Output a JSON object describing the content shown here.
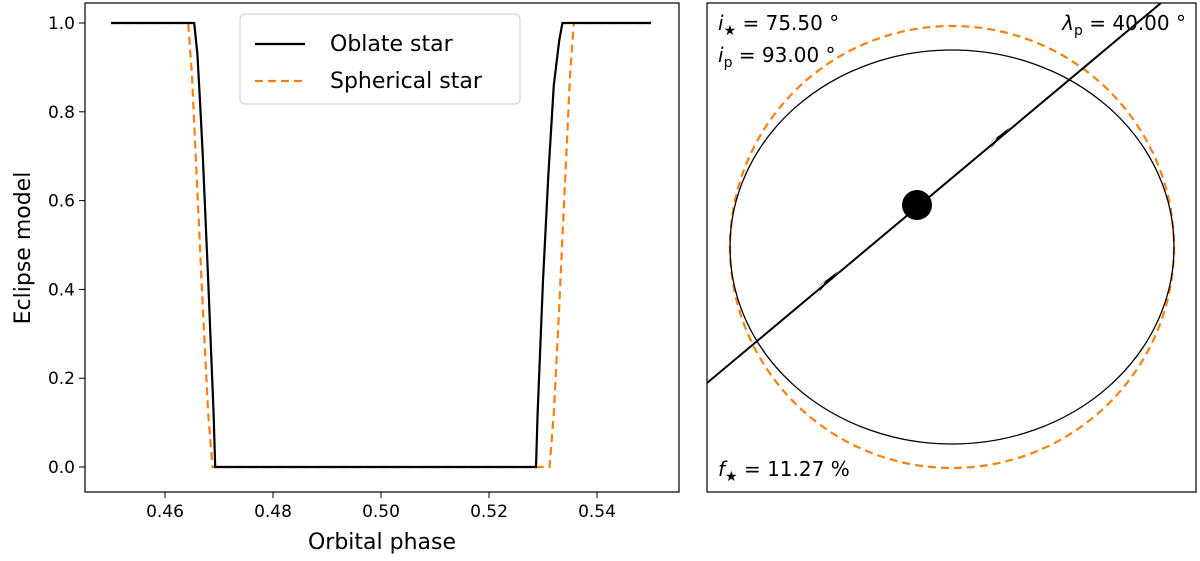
{
  "chart_data": [
    {
      "type": "line",
      "xlabel": "Orbital phase",
      "ylabel": "Eclipse model",
      "xlim": [
        0.45,
        0.55
      ],
      "ylim": [
        0.0,
        1.0
      ],
      "xticks": [
        0.46,
        0.48,
        0.5,
        0.52,
        0.54
      ],
      "xtick_labels": [
        "0.46",
        "0.48",
        "0.50",
        "0.52",
        "0.54"
      ],
      "yticks": [
        0.0,
        0.2,
        0.4,
        0.6,
        0.8,
        1.0
      ],
      "ytick_labels": [
        "0.0",
        "0.2",
        "0.4",
        "0.6",
        "0.8",
        "1.0"
      ],
      "grid": false,
      "legend": "top-center",
      "series": [
        {
          "name": "Oblate star",
          "color": "#000000",
          "linestyle": "solid",
          "x": [
            0.45,
            0.4654,
            0.466,
            0.4665,
            0.467,
            0.468,
            0.469,
            0.4693,
            0.5,
            0.5287,
            0.529,
            0.53,
            0.531,
            0.532,
            0.533,
            0.5336,
            0.55
          ],
          "y": [
            1.0,
            1.0,
            0.93,
            0.82,
            0.7,
            0.42,
            0.12,
            0.0,
            0.0,
            0.0,
            0.12,
            0.42,
            0.66,
            0.86,
            0.96,
            1.0,
            1.0
          ]
        },
        {
          "name": "Spherical star",
          "color": "#ff7f0e",
          "linestyle": "dashed",
          "x": [
            0.45,
            0.4643,
            0.465,
            0.466,
            0.467,
            0.468,
            0.4688,
            0.5,
            0.5312,
            0.532,
            0.533,
            0.534,
            0.535,
            0.5357,
            0.55
          ],
          "y": [
            1.0,
            1.0,
            0.88,
            0.62,
            0.36,
            0.12,
            0.0,
            0.0,
            0.0,
            0.12,
            0.36,
            0.62,
            0.88,
            1.0,
            1.0
          ]
        }
      ]
    },
    {
      "type": "diagram",
      "annotations": {
        "i_star": {
          "sym": "i",
          "sub": "★",
          "rest": " = 75.50 °"
        },
        "i_p": {
          "sym": "i",
          "sub": "p",
          "rest": " = 93.00 °"
        },
        "lambda_p": {
          "sym": "λ",
          "sub": "p",
          "rest": " = 40.00 °"
        },
        "f_star": {
          "sym": "f",
          "sub": "★",
          "rest": " = 11.27 %"
        }
      },
      "oblate_outline_color": "#000000",
      "spherical_outline_color": "#ff7f0e",
      "orbit_line_color": "#000000",
      "planet_color": "#000000",
      "oblateness_percent": 11.27,
      "projected_obliquity_deg": 40.0
    }
  ]
}
